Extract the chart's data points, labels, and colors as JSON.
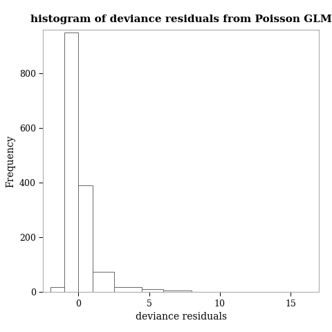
{
  "title": "histogram of deviance residuals from Poisson GLM",
  "xlabel": "deviance residuals",
  "ylabel": "Frequency",
  "bar_edges": [
    -2.0,
    -1.0,
    0.0,
    1.0,
    2.5,
    4.5,
    6.0,
    8.0,
    10.0,
    17.0
  ],
  "bar_heights": [
    20,
    950,
    390,
    75,
    20,
    10,
    5,
    0,
    0
  ],
  "xlim": [
    -2.5,
    17.0
  ],
  "ylim": [
    0,
    960
  ],
  "xticks": [
    0,
    5,
    10,
    15
  ],
  "yticks": [
    0,
    200,
    400,
    600,
    800
  ],
  "bar_facecolor": "white",
  "bar_edgecolor": "#666666",
  "spine_color": "#aaaaaa",
  "background_color": "white",
  "title_fontsize": 11,
  "axis_label_fontsize": 10,
  "tick_fontsize": 9
}
